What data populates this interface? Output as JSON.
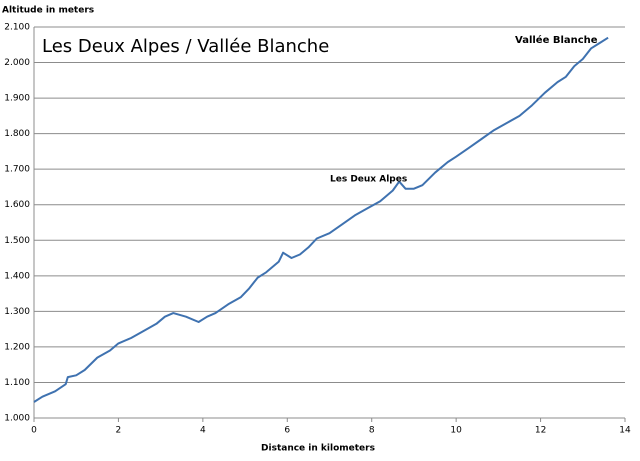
{
  "chart_data": {
    "type": "line",
    "title": "Les Deux Alpes / Vallée Blanche",
    "ylabel": "Altitude in meters",
    "xlabel": "Distance in kilometers",
    "annotations": [
      "Les Deux Alpes",
      "Vallée Blanche"
    ],
    "color": "#3f72b0",
    "grid": true,
    "x": [
      0,
      0.2,
      0.5,
      0.75,
      0.8,
      1.0,
      1.2,
      1.5,
      1.8,
      2.0,
      2.3,
      2.6,
      2.9,
      3.1,
      3.3,
      3.6,
      3.9,
      4.1,
      4.3,
      4.6,
      4.9,
      5.1,
      5.3,
      5.5,
      5.8,
      5.9,
      6.1,
      6.3,
      6.5,
      6.7,
      7.0,
      7.3,
      7.6,
      7.9,
      8.2,
      8.5,
      8.65,
      8.8,
      9.0,
      9.2,
      9.5,
      9.8,
      10.0,
      10.3,
      10.6,
      10.9,
      11.2,
      11.5,
      11.8,
      12.1,
      12.4,
      12.6,
      12.8,
      13.0,
      13.2,
      13.4,
      13.6
    ],
    "values": [
      1045,
      1060,
      1075,
      1095,
      1115,
      1120,
      1135,
      1170,
      1190,
      1210,
      1225,
      1245,
      1265,
      1285,
      1295,
      1285,
      1270,
      1285,
      1295,
      1320,
      1340,
      1365,
      1395,
      1410,
      1440,
      1465,
      1450,
      1460,
      1480,
      1505,
      1520,
      1545,
      1570,
      1590,
      1610,
      1640,
      1665,
      1645,
      1645,
      1655,
      1690,
      1720,
      1735,
      1760,
      1785,
      1810,
      1830,
      1850,
      1880,
      1915,
      1945,
      1960,
      1990,
      2010,
      2040,
      2055,
      2070
    ],
    "xlim": [
      0,
      14
    ],
    "xticks": [
      0,
      2,
      4,
      6,
      8,
      10,
      12,
      14
    ],
    "ylim": [
      1000,
      2100
    ],
    "yticks": [
      {
        "value": 1000,
        "label": "1.000"
      },
      {
        "value": 1100,
        "label": "1.100"
      },
      {
        "value": 1200,
        "label": "1.200"
      },
      {
        "value": 1300,
        "label": "1.300"
      },
      {
        "value": 1400,
        "label": "1.400"
      },
      {
        "value": 1500,
        "label": "1.500"
      },
      {
        "value": 1600,
        "label": "1.600"
      },
      {
        "value": 1700,
        "label": "1.700"
      },
      {
        "value": 1800,
        "label": "1.800"
      },
      {
        "value": 1900,
        "label": "1.900"
      },
      {
        "value": 2000,
        "label": "2.000"
      },
      {
        "value": 2100,
        "label": "2.100"
      }
    ]
  }
}
